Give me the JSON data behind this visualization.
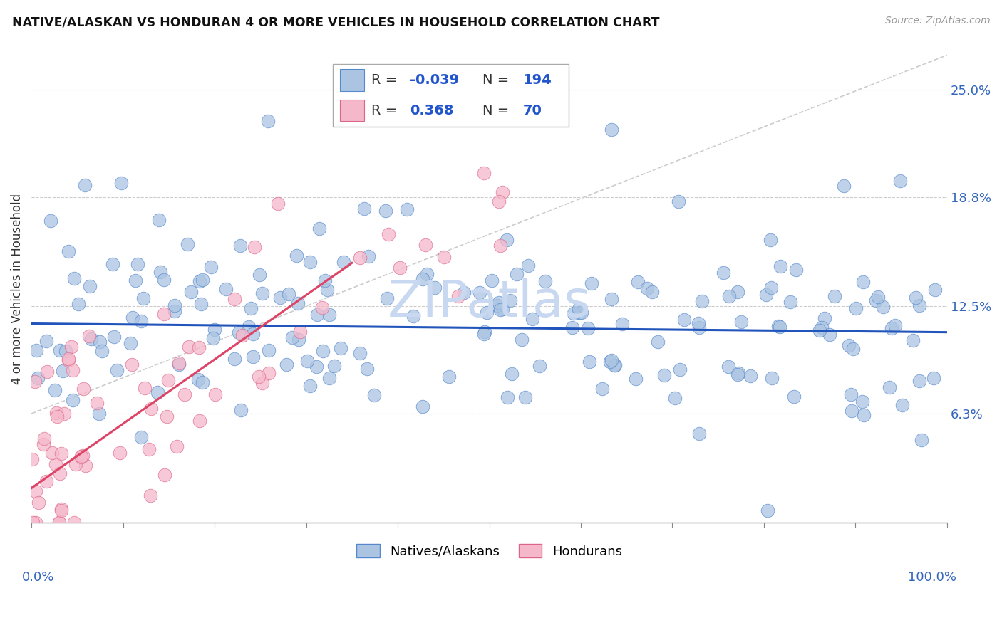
{
  "title": "NATIVE/ALASKAN VS HONDURAN 4 OR MORE VEHICLES IN HOUSEHOLD CORRELATION CHART",
  "source": "Source: ZipAtlas.com",
  "ylabel": "4 or more Vehicles in Household",
  "yticks": [
    6.3,
    12.5,
    18.8,
    25.0
  ],
  "ytick_labels": [
    "6.3%",
    "12.5%",
    "18.8%",
    "25.0%"
  ],
  "xmin": 0.0,
  "xmax": 100.0,
  "ymin": 0.0,
  "ymax": 27.0,
  "blue_R": -0.039,
  "blue_N": 194,
  "pink_R": 0.368,
  "pink_N": 70,
  "blue_color": "#aac4e2",
  "pink_color": "#f5b8cb",
  "blue_edge_color": "#5588cc",
  "pink_edge_color": "#dd6688",
  "blue_line_color": "#2255bb",
  "pink_line_color": "#dd4466",
  "ref_line_color": "#cccccc",
  "legend_R_color": "#2255cc",
  "legend_N_color": "#111111",
  "watermark_color": "#c8d8f0",
  "blue_line_y_start": 11.5,
  "blue_line_y_end": 11.0,
  "pink_line_x_start": 0.0,
  "pink_line_x_end": 35.0,
  "pink_line_y_start": 2.0,
  "pink_line_y_end": 15.0,
  "ref_line_x_start": 0.0,
  "ref_line_x_end": 100.0,
  "ref_line_y_start": 6.3,
  "ref_line_y_end": 27.0
}
